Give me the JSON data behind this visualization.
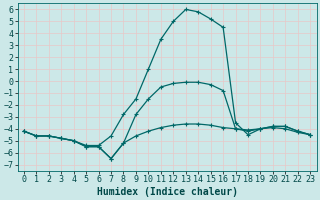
{
  "title": "",
  "xlabel": "Humidex (Indice chaleur)",
  "background_color": "#cce8e8",
  "grid_color": "#e8c8c8",
  "line_color": "#006868",
  "xlim": [
    -0.5,
    23.5
  ],
  "ylim": [
    -7.5,
    6.5
  ],
  "xticks": [
    0,
    1,
    2,
    3,
    4,
    5,
    6,
    7,
    8,
    9,
    10,
    11,
    12,
    13,
    14,
    15,
    16,
    17,
    18,
    19,
    20,
    21,
    22,
    23
  ],
  "yticks": [
    -7,
    -6,
    -5,
    -4,
    -3,
    -2,
    -1,
    0,
    1,
    2,
    3,
    4,
    5,
    6
  ],
  "curve_main_x": [
    0,
    1,
    2,
    3,
    4,
    5,
    6,
    7,
    8,
    9,
    10,
    11,
    12,
    13,
    14,
    15,
    16,
    17,
    18,
    19,
    20,
    21,
    22,
    23
  ],
  "curve_main_y": [
    -4.2,
    -4.6,
    -4.6,
    -4.8,
    -5.0,
    -5.4,
    -5.4,
    -4.6,
    -2.8,
    -1.5,
    1.0,
    3.5,
    5.0,
    6.0,
    5.8,
    5.2,
    4.5,
    -3.5,
    -4.5,
    -4.0,
    -3.8,
    -3.8,
    -4.2,
    -4.5
  ],
  "curve_low_x": [
    0,
    1,
    2,
    3,
    4,
    5,
    6,
    7,
    8,
    9,
    10,
    11,
    12,
    13,
    14,
    15,
    16,
    17,
    18,
    19,
    20,
    21,
    22,
    23
  ],
  "curve_low_y": [
    -4.2,
    -4.6,
    -4.6,
    -4.8,
    -5.0,
    -5.5,
    -5.5,
    -6.5,
    -5.2,
    -4.6,
    -4.2,
    -3.9,
    -3.7,
    -3.6,
    -3.6,
    -3.7,
    -3.9,
    -4.0,
    -4.1,
    -4.0,
    -3.9,
    -4.0,
    -4.3,
    -4.5
  ],
  "curve_mid_x": [
    0,
    1,
    2,
    3,
    4,
    5,
    6,
    7,
    8,
    9,
    10,
    11,
    12,
    13,
    14,
    15,
    16,
    17,
    18,
    19,
    20,
    21,
    22,
    23
  ],
  "curve_mid_y": [
    -4.2,
    -4.6,
    -4.6,
    -4.8,
    -5.0,
    -5.5,
    -5.5,
    -6.5,
    -5.2,
    -2.8,
    -1.5,
    -0.5,
    -0.2,
    -0.1,
    -0.1,
    -0.3,
    -0.8,
    -4.0,
    -4.2,
    -4.0,
    -3.8,
    -3.8,
    -4.2,
    -4.5
  ],
  "xlabel_fontsize": 7,
  "tick_fontsize": 6
}
